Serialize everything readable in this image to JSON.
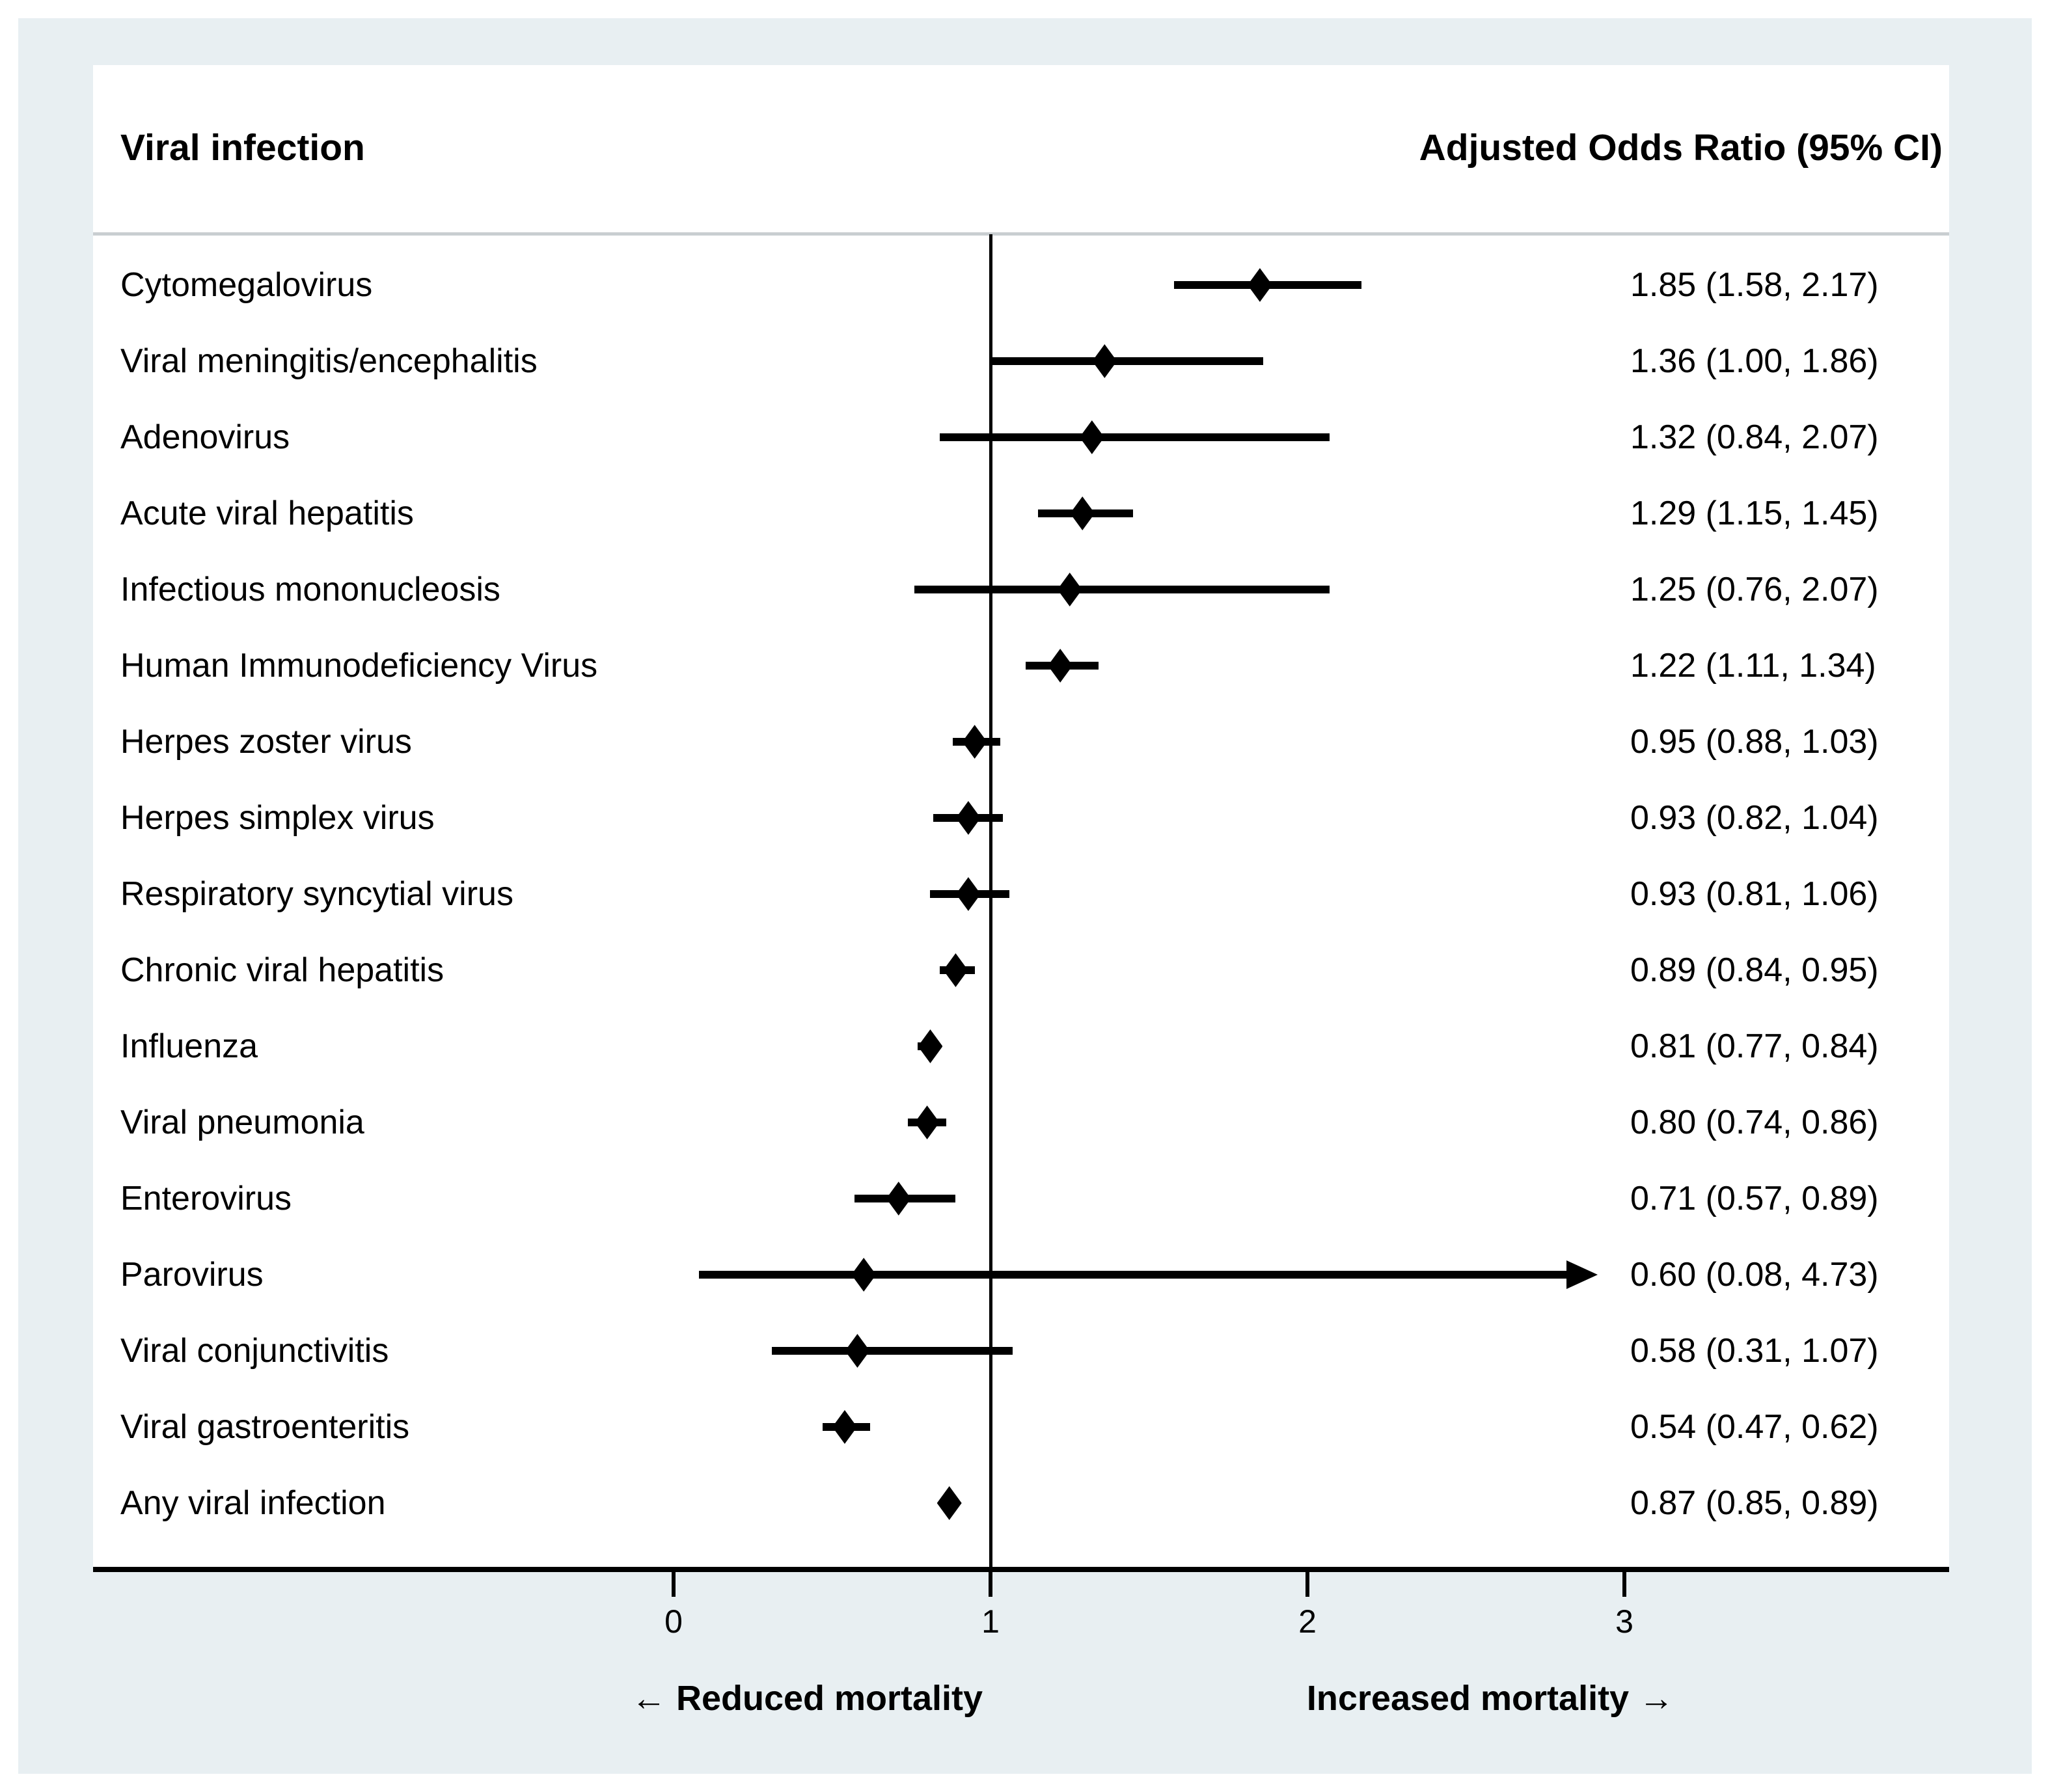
{
  "figure": {
    "header": {
      "left_title": "Viral infection",
      "right_title": "Adjusted Odds Ratio (95% CI)"
    },
    "footer": {
      "left_label": "← Reduced mortality",
      "right_label": "Increased mortality →"
    }
  },
  "chart_data": {
    "type": "scatter",
    "variant": "forest-plot",
    "title_left": "Viral infection",
    "title_right": "Adjusted Odds Ratio (95% CI)",
    "x_axis": {
      "ticks": [
        0,
        1,
        2,
        3
      ],
      "tick_labels": [
        "0",
        "1",
        "2",
        "3"
      ],
      "drawn_range": [
        0,
        4.02
      ],
      "reference_line_x": 1,
      "grid": false
    },
    "direction_annotations": {
      "left_of_null": "← Reduced mortality",
      "right_of_null": "Increased mortality →"
    },
    "rows": [
      {
        "label": "Cytomegalovirus",
        "or": 1.85,
        "ci_low": 1.58,
        "ci_high": 2.17,
        "display": "1.85 (1.58, 2.17)",
        "arrow_right": false
      },
      {
        "label": "Viral meningitis/encephalitis",
        "or": 1.36,
        "ci_low": 1.0,
        "ci_high": 1.86,
        "display": "1.36 (1.00, 1.86)",
        "arrow_right": false
      },
      {
        "label": "Adenovirus",
        "or": 1.32,
        "ci_low": 0.84,
        "ci_high": 2.07,
        "display": "1.32 (0.84, 2.07)",
        "arrow_right": false
      },
      {
        "label": "Acute viral hepatitis",
        "or": 1.29,
        "ci_low": 1.15,
        "ci_high": 1.45,
        "display": "1.29 (1.15, 1.45)",
        "arrow_right": false
      },
      {
        "label": "Infectious mononucleosis",
        "or": 1.25,
        "ci_low": 0.76,
        "ci_high": 2.07,
        "display": "1.25 (0.76, 2.07)",
        "arrow_right": false
      },
      {
        "label": "Human Immunodeficiency Virus",
        "or": 1.22,
        "ci_low": 1.11,
        "ci_high": 1.34,
        "display": "1.22 (1.11, 1.34)",
        "arrow_right": false
      },
      {
        "label": "Herpes zoster virus",
        "or": 0.95,
        "ci_low": 0.88,
        "ci_high": 1.03,
        "display": "0.95 (0.88, 1.03)",
        "arrow_right": false
      },
      {
        "label": "Herpes simplex virus",
        "or": 0.93,
        "ci_low": 0.82,
        "ci_high": 1.04,
        "display": "0.93 (0.82, 1.04)",
        "arrow_right": false
      },
      {
        "label": "Respiratory syncytial virus",
        "or": 0.93,
        "ci_low": 0.81,
        "ci_high": 1.06,
        "display": "0.93 (0.81, 1.06)",
        "arrow_right": false
      },
      {
        "label": "Chronic viral hepatitis",
        "or": 0.89,
        "ci_low": 0.84,
        "ci_high": 0.95,
        "display": "0.89 (0.84, 0.95)",
        "arrow_right": false
      },
      {
        "label": "Influenza",
        "or": 0.81,
        "ci_low": 0.77,
        "ci_high": 0.84,
        "display": "0.81 (0.77, 0.84)",
        "arrow_right": false
      },
      {
        "label": "Viral pneumonia",
        "or": 0.8,
        "ci_low": 0.74,
        "ci_high": 0.86,
        "display": "0.80 (0.74, 0.86)",
        "arrow_right": false
      },
      {
        "label": "Enterovirus",
        "or": 0.71,
        "ci_low": 0.57,
        "ci_high": 0.89,
        "display": "0.71 (0.57, 0.89)",
        "arrow_right": false
      },
      {
        "label": "Parovirus",
        "or": 0.6,
        "ci_low": 0.08,
        "ci_high": 4.73,
        "display": "0.60 (0.08, 4.73)",
        "arrow_right": true
      },
      {
        "label": "Viral conjunctivitis",
        "or": 0.58,
        "ci_low": 0.31,
        "ci_high": 1.07,
        "display": "0.58 (0.31, 1.07)",
        "arrow_right": false
      },
      {
        "label": "Viral gastroenteritis",
        "or": 0.54,
        "ci_low": 0.47,
        "ci_high": 0.62,
        "display": "0.54 (0.47, 0.62)",
        "arrow_right": false
      },
      {
        "label": "Any viral infection",
        "or": 0.87,
        "ci_low": 0.85,
        "ci_high": 0.89,
        "display": "0.87 (0.85, 0.89)",
        "arrow_right": false
      }
    ]
  },
  "colors": {
    "canvas_background": "#e8eff2",
    "panel_background": "#ffffff",
    "ink": "#000000",
    "header_divider": "#c9ced1"
  }
}
